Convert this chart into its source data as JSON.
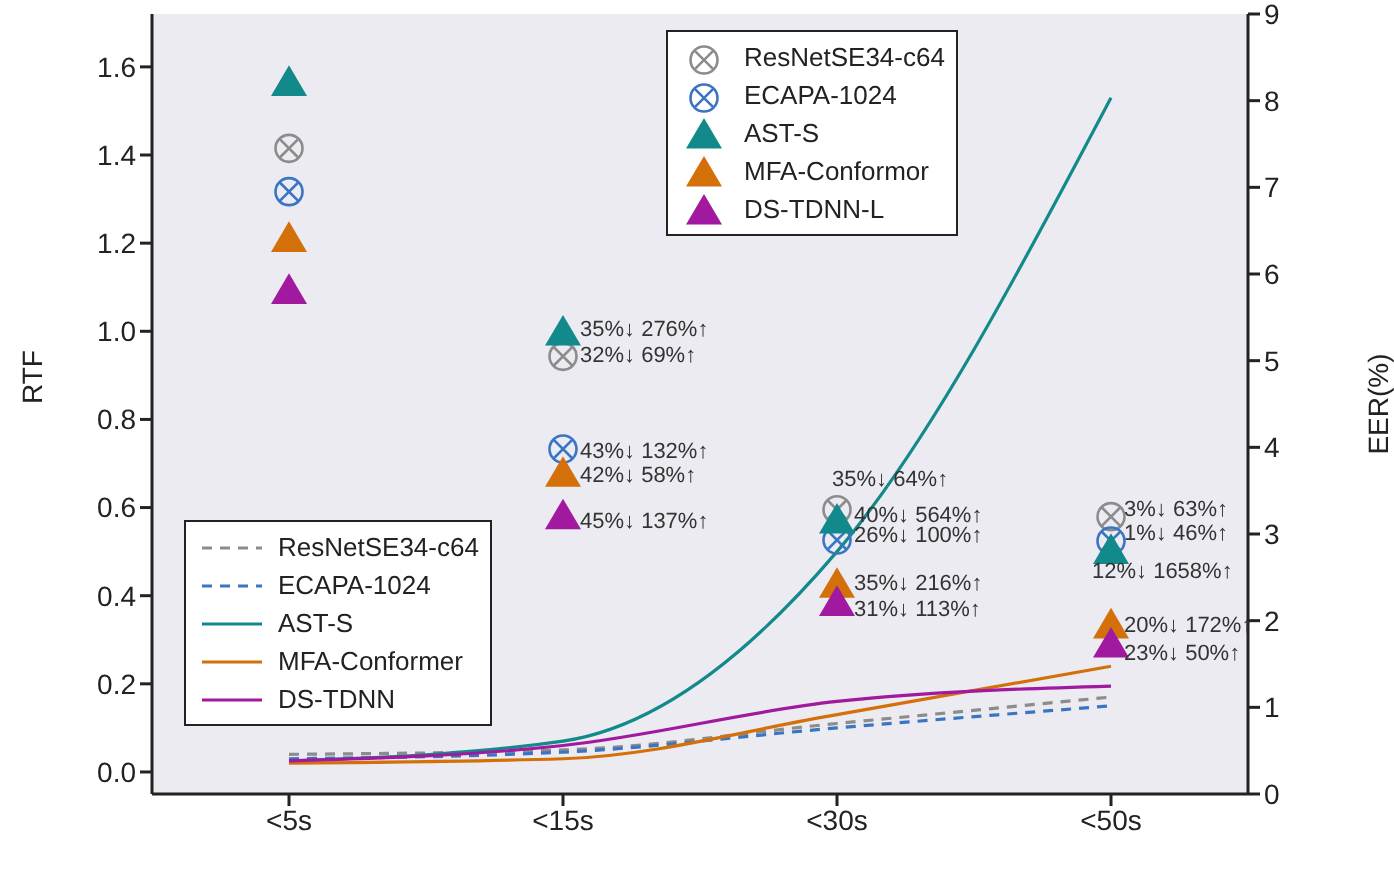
{
  "chart_data": {
    "type": "line",
    "ylabel": "RTF",
    "y2label": "EER(%)",
    "categories": [
      "<5s",
      "<15s",
      "<30s",
      "<50s"
    ],
    "ylim": [
      -0.05,
      1.72
    ],
    "yticks": [
      {
        "value": 0,
        "label": "0.0"
      },
      {
        "value": 0.2,
        "label": "0.2"
      },
      {
        "value": 0.4,
        "label": "0.4"
      },
      {
        "value": 0.6,
        "label": "0.6"
      },
      {
        "value": 0.8,
        "label": "0.8"
      },
      {
        "value": 1,
        "label": "1.0"
      },
      {
        "value": 1.2,
        "label": "1.2"
      },
      {
        "value": 1.4,
        "label": "1.4"
      },
      {
        "value": 1.6,
        "label": "1.6"
      }
    ],
    "y2lim": [
      0,
      9
    ],
    "y2ticks": [
      0,
      1,
      2,
      3,
      4,
      5,
      6,
      7,
      8,
      9
    ],
    "legend": "top left",
    "series": [
      {
        "name": "ResNetSE34-c64",
        "color": "#8c8c8c",
        "line_style": "dashed",
        "values": [
          0.04,
          0.05,
          0.11,
          0.17
        ]
      },
      {
        "name": "ECAPA-1024",
        "color": "#3a75c4",
        "line_style": "dashed",
        "values": [
          0.03,
          0.045,
          0.1,
          0.15
        ]
      },
      {
        "name": "AST-S",
        "color": "#12898a",
        "line_style": "solid",
        "values": [
          0.025,
          0.07,
          0.5,
          1.53
        ]
      },
      {
        "name": "MFA-Conformer",
        "color": "#d4700a",
        "line_style": "solid",
        "values": [
          0.02,
          0.03,
          0.13,
          0.24
        ]
      },
      {
        "name": "DS-TDNN",
        "color": "#a0199f",
        "line_style": "solid",
        "values": [
          0.025,
          0.06,
          0.16,
          0.195
        ]
      },
      {
        "name": "ResNetSE34-c64",
        "type": "scatter",
        "axis": "y2",
        "marker": "circle",
        "color": "#8c8c8c",
        "values": [
          7.45,
          5.05,
          3.28,
          3.2
        ]
      },
      {
        "name": "ECAPA-1024",
        "type": "scatter",
        "axis": "y2",
        "marker": "circle",
        "color": "#3a75c4",
        "values": [
          6.95,
          3.98,
          2.93,
          2.92
        ]
      },
      {
        "name": "AST-S",
        "type": "scatter",
        "axis": "y2",
        "marker": "triangle",
        "color": "#12898a",
        "values": [
          8.2,
          5.32,
          3.15,
          2.8
        ]
      },
      {
        "name": "MFA-Conformor",
        "type": "scatter",
        "axis": "y2",
        "marker": "triangle",
        "color": "#d4700a",
        "values": [
          6.4,
          3.69,
          2.41,
          1.94
        ]
      },
      {
        "name": "DS-TDNN-L",
        "type": "scatter",
        "axis": "y2",
        "marker": "triangle",
        "color": "#a0199f",
        "values": [
          5.8,
          3.2,
          2.2,
          1.72
        ]
      }
    ],
    "annotations": [
      "35%↓ 276%↑",
      "32%↓ 69%↑",
      "43%↓ 132%↑",
      "42%↓ 58%↑",
      "45%↓ 137%↑",
      "35%↓ 64%↑",
      "40%↓ 564%↑",
      "26%↓ 100%↑",
      "35%↓ 216%↑",
      "31%↓ 113%↑",
      "3%↓ 63%↑",
      "1%↓ 46%↑",
      "12%↓ 1658%↑",
      "20%↓ 172%↑",
      "23%↓ 50%↑"
    ]
  }
}
